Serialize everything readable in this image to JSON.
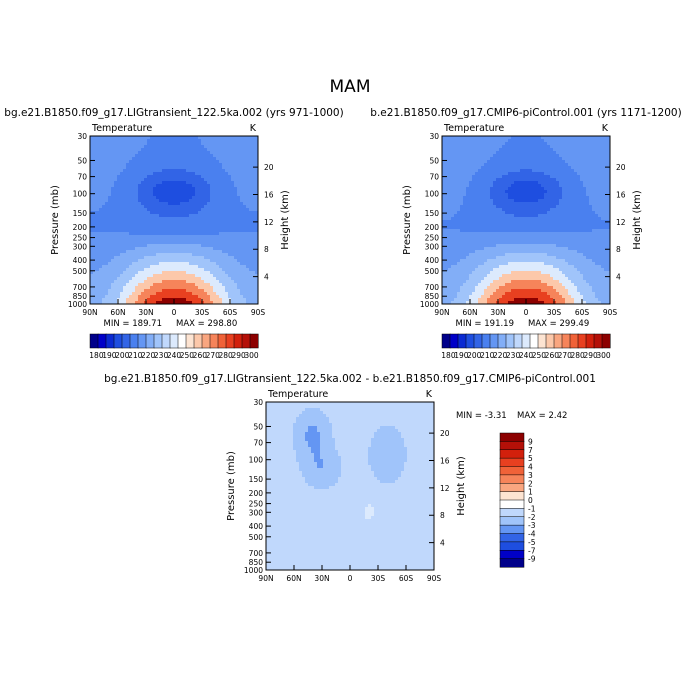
{
  "page_title": "MAM",
  "colormap": [
    "#00008a",
    "#0000c8",
    "#0a2ad2",
    "#1e4ee0",
    "#3264e6",
    "#4a80ef",
    "#6496f3",
    "#82aef7",
    "#a0c4fa",
    "#c0d8fc",
    "#dceafd",
    "#ffffff",
    "#fde4d2",
    "#fcc8aa",
    "#f9a680",
    "#f6845a",
    "#f06238",
    "#e84020",
    "#d2200c",
    "#b41008",
    "#8c0000"
  ],
  "chart_data": [
    {
      "type": "contour",
      "title": "bg.e21.B1850.f09_g17.LIGtransient_122.5ka.002 (yrs 971-1000)",
      "variable_label": "Temperature",
      "unit_label": "K",
      "xlabel": "",
      "ylabel": "Pressure (mb)",
      "y2label": "Height (km)",
      "x_ticks": [
        "90N",
        "60N",
        "30N",
        "0",
        "30S",
        "60S",
        "90S"
      ],
      "y_ticks": [
        "30",
        "50",
        "70",
        "100",
        "150",
        "200",
        "250",
        "300",
        "400",
        "500",
        "700",
        "850",
        "1000"
      ],
      "y2_ticks": [
        "20",
        "16",
        "12",
        "8",
        "4"
      ],
      "min_label": "MIN = 189.71",
      "max_label": "MAX = 298.80",
      "min": 189.71,
      "max": 298.8,
      "colorbar_labels": [
        "180",
        "190",
        "200",
        "210",
        "220",
        "230",
        "240",
        "250",
        "260",
        "270",
        "280",
        "290",
        "300"
      ]
    },
    {
      "type": "contour",
      "title": "b.e21.B1850.f09_g17.CMIP6-piControl.001 (yrs 1171-1200)",
      "variable_label": "Temperature",
      "unit_label": "K",
      "xlabel": "",
      "ylabel": "Pressure (mb)",
      "y2label": "Height (km)",
      "x_ticks": [
        "90N",
        "60N",
        "30N",
        "0",
        "30S",
        "60S",
        "90S"
      ],
      "y_ticks": [
        "30",
        "50",
        "70",
        "100",
        "150",
        "200",
        "250",
        "300",
        "400",
        "500",
        "700",
        "850",
        "1000"
      ],
      "y2_ticks": [
        "20",
        "16",
        "12",
        "8",
        "4"
      ],
      "min_label": "MIN = 191.19",
      "max_label": "MAX = 299.49",
      "min": 191.19,
      "max": 299.49,
      "colorbar_labels": [
        "180",
        "190",
        "200",
        "210",
        "220",
        "230",
        "240",
        "250",
        "260",
        "270",
        "280",
        "290",
        "300"
      ]
    },
    {
      "type": "contour",
      "title": "bg.e21.B1850.f09_g17.LIGtransient_122.5ka.002 - b.e21.B1850.f09_g17.CMIP6-piControl.001",
      "variable_label": "Temperature",
      "unit_label": "K",
      "xlabel": "",
      "ylabel": "Pressure (mb)",
      "y2label": "Height (km)",
      "x_ticks": [
        "90N",
        "60N",
        "30N",
        "0",
        "30S",
        "60S",
        "90S"
      ],
      "y_ticks": [
        "30",
        "50",
        "70",
        "100",
        "150",
        "200",
        "250",
        "300",
        "400",
        "500",
        "700",
        "850",
        "1000"
      ],
      "y2_ticks": [
        "20",
        "16",
        "12",
        "8",
        "4"
      ],
      "min_label": "MIN = -3.31",
      "max_label": "MAX = 2.42",
      "min": -3.31,
      "max": 2.42,
      "colorbar_labels": [
        "9",
        "7",
        "5",
        "4",
        "3",
        "2",
        "1",
        "0",
        "-1",
        "-2",
        "-3",
        "-4",
        "-5",
        "-7",
        "-9"
      ]
    }
  ]
}
